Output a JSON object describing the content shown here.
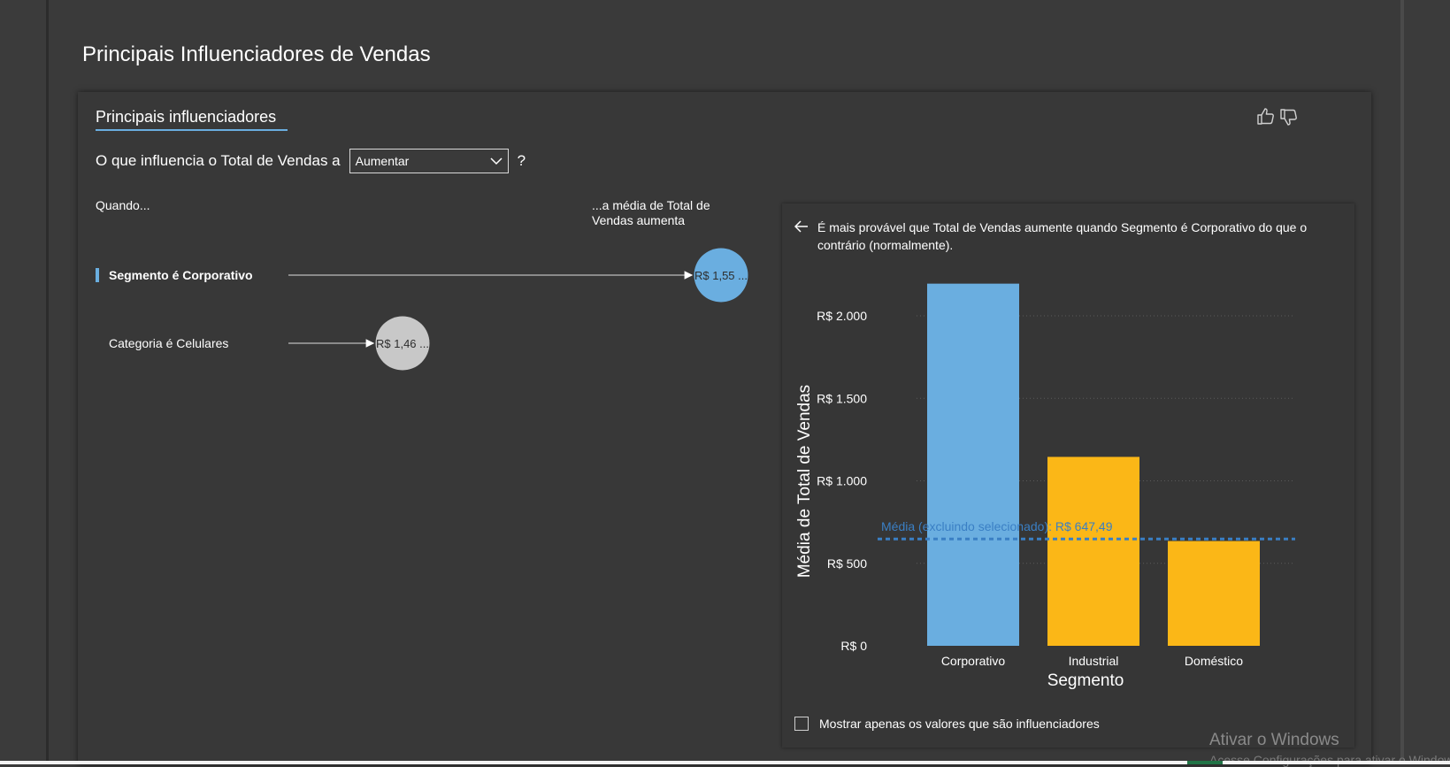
{
  "report": {
    "title": "Principais Influenciadores de Vendas"
  },
  "visual": {
    "tab_title": "Principais influenciadores",
    "question_prefix": "O que influencia o Total de Vendas a",
    "dropdown_value": "Aumentar",
    "question_suffix": "?",
    "column_when": "Quando...",
    "column_avg_line1": "...a média de Total de",
    "column_avg_line2": "Vendas aumenta",
    "influencers": [
      {
        "label": "Segmento é Corporativo",
        "value_label": "R$ 1,55 ...",
        "value": 1.55,
        "selected": true
      },
      {
        "label": "Categoria é Celulares",
        "value_label": "R$ 1,46 ...",
        "value": 1.46,
        "selected": false
      }
    ],
    "thumbs_up_icon": "thumbs-up-icon",
    "thumbs_down_icon": "thumbs-down-icon"
  },
  "detail": {
    "back_icon": "arrow-left-icon",
    "description": "É mais provável que Total de Vendas aumente quando Segmento é Corporativo do que o contrário (normalmente).",
    "checkbox_label": "Mostrar apenas os valores que são influenciadores",
    "checkbox_checked": false
  },
  "chart_data": {
    "type": "bar",
    "categories": [
      "Corporativo",
      "Industrial",
      "Doméstico"
    ],
    "values": [
      2195,
      1145,
      635
    ],
    "colors": [
      "#6aaee0",
      "#fbb717",
      "#fbb717"
    ],
    "ylim": [
      0,
      2000
    ],
    "yticks": [
      0,
      500,
      1000,
      1500,
      2000
    ],
    "ytick_labels": [
      "R$ 0",
      "R$ 500",
      "R$ 1.000",
      "R$ 1.500",
      "R$ 2.000"
    ],
    "xlabel": "Segmento",
    "ylabel": "Média de Total de Vendas",
    "reference_line": {
      "value": 647.49,
      "label": "Média (excluindo selecionado): R$ 647,49",
      "color": "#3a7fc4"
    },
    "grid": true
  },
  "os": {
    "watermark": "Ativar o Windows",
    "watermark_sub": "Acesse Configurações para ativar o Windows."
  }
}
